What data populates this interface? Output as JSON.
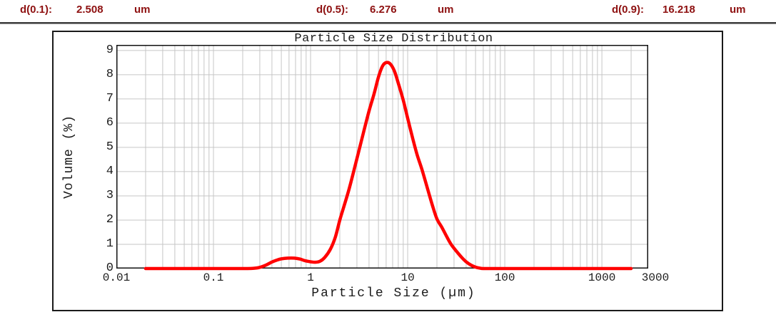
{
  "header": {
    "text_color": "#8e1111",
    "items": [
      {
        "label": "d(0.1):",
        "value": "2.508",
        "unit": "um"
      },
      {
        "label": "d(0.5):",
        "value": "6.276",
        "unit": "um"
      },
      {
        "label": "d(0.9):",
        "value": "16.218",
        "unit": "um"
      }
    ]
  },
  "chart_data": {
    "type": "line",
    "title": "Particle Size Distribution",
    "xlabel": "Particle Size (µm)",
    "ylabel": "Volume (%)",
    "x_scale": "log",
    "xlim": [
      0.01,
      3000
    ],
    "ylim": [
      0,
      9.23
    ],
    "grid": true,
    "legend": "none",
    "x_ticks": [
      {
        "value": 0.01,
        "label": "0.01"
      },
      {
        "value": 0.1,
        "label": "0.1"
      },
      {
        "value": 1,
        "label": "1"
      },
      {
        "value": 10,
        "label": "10"
      },
      {
        "value": 100,
        "label": "100"
      },
      {
        "value": 1000,
        "label": "1000"
      },
      {
        "value": 3000,
        "label": "3000"
      }
    ],
    "y_ticks": [
      0,
      1,
      2,
      3,
      4,
      5,
      6,
      7,
      8,
      9
    ],
    "colors": {
      "curve": "#ff0000",
      "grid": "#c6c6c6",
      "frame": "#111111",
      "text": "#1a1a1a"
    },
    "series": [
      {
        "name": "volume-distribution",
        "color": "#ff0000",
        "points": [
          [
            0.02,
            0
          ],
          [
            0.05,
            0
          ],
          [
            0.1,
            0
          ],
          [
            0.16,
            0
          ],
          [
            0.22,
            0
          ],
          [
            0.26,
            0.01
          ],
          [
            0.3,
            0.05
          ],
          [
            0.35,
            0.15
          ],
          [
            0.4,
            0.27
          ],
          [
            0.45,
            0.35
          ],
          [
            0.5,
            0.4
          ],
          [
            0.58,
            0.43
          ],
          [
            0.68,
            0.43
          ],
          [
            0.78,
            0.39
          ],
          [
            0.88,
            0.32
          ],
          [
            1.0,
            0.28
          ],
          [
            1.12,
            0.26
          ],
          [
            1.25,
            0.3
          ],
          [
            1.4,
            0.46
          ],
          [
            1.6,
            0.8
          ],
          [
            1.8,
            1.3
          ],
          [
            2.0,
            2.0
          ],
          [
            2.2,
            2.55
          ],
          [
            2.5,
            3.3
          ],
          [
            2.9,
            4.3
          ],
          [
            3.5,
            5.6
          ],
          [
            4.0,
            6.5
          ],
          [
            4.5,
            7.2
          ],
          [
            5.0,
            7.9
          ],
          [
            5.5,
            8.35
          ],
          [
            6.0,
            8.5
          ],
          [
            6.6,
            8.45
          ],
          [
            7.3,
            8.15
          ],
          [
            8.0,
            7.65
          ],
          [
            9.0,
            6.95
          ],
          [
            10.0,
            6.2
          ],
          [
            11.3,
            5.35
          ],
          [
            12.5,
            4.7
          ],
          [
            14.0,
            4.1
          ],
          [
            16.0,
            3.3
          ],
          [
            18.0,
            2.6
          ],
          [
            20.0,
            2.05
          ],
          [
            22.5,
            1.7
          ],
          [
            25.0,
            1.35
          ],
          [
            28.0,
            1.0
          ],
          [
            32.0,
            0.7
          ],
          [
            36.0,
            0.46
          ],
          [
            40.0,
            0.28
          ],
          [
            45.0,
            0.14
          ],
          [
            50.0,
            0.06
          ],
          [
            55.0,
            0.02
          ],
          [
            60.0,
            0
          ],
          [
            80,
            0
          ],
          [
            120,
            0
          ],
          [
            200,
            0
          ],
          [
            400,
            0
          ],
          [
            800,
            0
          ],
          [
            1500,
            0
          ],
          [
            2000,
            0
          ]
        ]
      }
    ]
  }
}
